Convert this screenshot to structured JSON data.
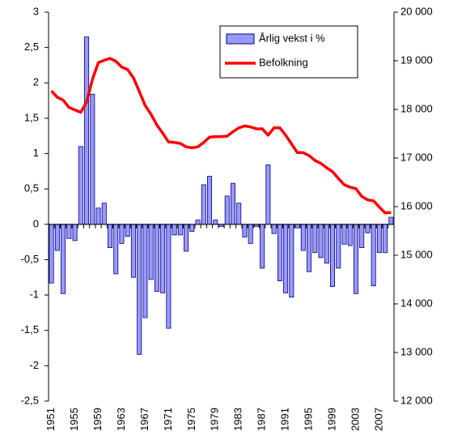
{
  "chart_data": {
    "type": "bar-line",
    "categories": [
      "1951",
      null,
      null,
      null,
      "1955",
      null,
      null,
      null,
      "1959",
      null,
      null,
      null,
      "1963",
      null,
      null,
      null,
      "1967",
      null,
      null,
      null,
      "1971",
      null,
      null,
      null,
      "1975",
      null,
      null,
      null,
      "1979",
      null,
      null,
      null,
      "1983",
      null,
      null,
      null,
      "1987",
      null,
      null,
      null,
      "1991",
      null,
      null,
      null,
      "1995",
      null,
      null,
      null,
      "1999",
      null,
      null,
      null,
      "2003",
      null,
      null,
      null,
      "2007",
      null,
      null
    ],
    "series": [
      {
        "name": "Årlig vekst i %",
        "type": "bar",
        "color": "#9999ff",
        "edge_color": "#000080",
        "values": [
          -0.83,
          -0.37,
          -0.98,
          -0.2,
          -0.23,
          1.1,
          2.65,
          1.84,
          0.23,
          0.3,
          -0.33,
          -0.7,
          -0.27,
          -0.17,
          -0.75,
          -1.84,
          -1.32,
          -0.78,
          -0.95,
          -0.97,
          -1.47,
          -0.15,
          -0.15,
          -0.38,
          -0.1,
          0.06,
          0.56,
          0.68,
          0.06,
          -0.03,
          0.4,
          0.58,
          0.3,
          -0.18,
          -0.27,
          -0.03,
          -0.62,
          0.84,
          -0.13,
          -0.8,
          -0.97,
          -1.03,
          -0.05,
          -0.37,
          -0.67,
          -0.4,
          -0.47,
          -0.55,
          -0.88,
          -0.62,
          -0.28,
          -0.3,
          -0.98,
          -0.33,
          -0.12,
          -0.87,
          -0.4,
          -0.4,
          0.1
        ]
      },
      {
        "name": "Befolkning",
        "type": "line",
        "axis": "y2",
        "color": "#ff0000",
        "values": [
          18380,
          18250,
          18190,
          18040,
          17990,
          17940,
          18150,
          18620,
          18960,
          19010,
          19050,
          18990,
          18870,
          18820,
          18650,
          18370,
          18080,
          17900,
          17680,
          17510,
          17330,
          17320,
          17300,
          17230,
          17210,
          17230,
          17320,
          17430,
          17440,
          17440,
          17450,
          17540,
          17620,
          17660,
          17640,
          17600,
          17600,
          17470,
          17620,
          17620,
          17470,
          17290,
          17110,
          17110,
          17050,
          16950,
          16890,
          16800,
          16720,
          16580,
          16450,
          16400,
          16370,
          16210,
          16140,
          16120,
          15990,
          15870,
          15880
        ]
      }
    ],
    "ylim": [
      -2.5,
      3
    ],
    "yticks": [
      {
        "value": -2.5,
        "label": "-2,5"
      },
      -2,
      {
        "value": -1.5,
        "label": "-1,5"
      },
      -1,
      {
        "value": -0.5,
        "label": "-0,5"
      },
      0,
      {
        "value": 0.5,
        "label": "0,5"
      },
      1,
      {
        "value": 1.5,
        "label": "1,5"
      },
      2,
      {
        "value": 2.5,
        "label": "2,5"
      },
      3
    ],
    "y2lim": [
      12000,
      20000
    ],
    "y2ticks": [
      {
        "value": 12000,
        "label": "12 000"
      },
      {
        "value": 13000,
        "label": "13 000"
      },
      {
        "value": 14000,
        "label": "14 000"
      },
      {
        "value": 15000,
        "label": "15 000"
      },
      {
        "value": 16000,
        "label": "16 000"
      },
      {
        "value": 17000,
        "label": "17 000"
      },
      {
        "value": 18000,
        "label": "18 000"
      },
      {
        "value": 19000,
        "label": "19 000"
      },
      {
        "value": 20000,
        "label": "20 000"
      }
    ],
    "legend": "upper right"
  }
}
